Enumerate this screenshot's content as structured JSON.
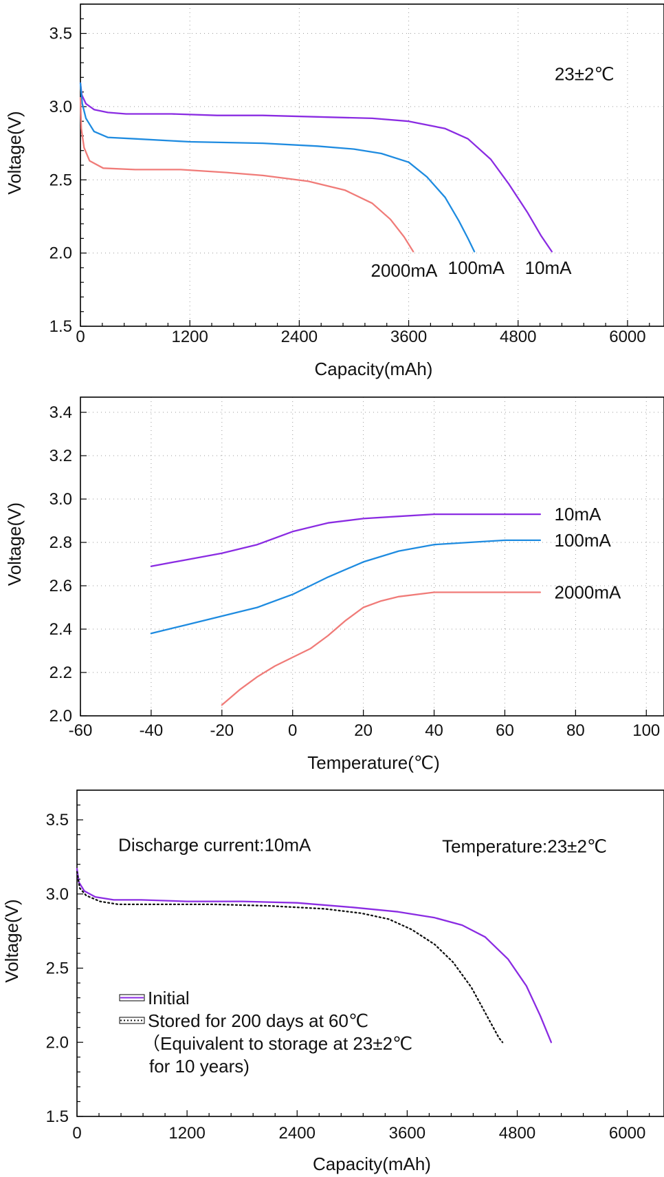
{
  "colors": {
    "ma10": "#8a2be2",
    "ma100": "#1e8be0",
    "ma2000": "#f07b78",
    "stored": "#111111"
  },
  "chart_data": [
    {
      "type": "line",
      "xlabel": "Capacity(mAh)",
      "ylabel": "Voltage(V)",
      "xlim": [
        0,
        6400
      ],
      "ylim": [
        1.5,
        3.7
      ],
      "xticks": [
        "0",
        "1200",
        "2400",
        "3600",
        "4800",
        "6000"
      ],
      "yticks": [
        "1.5",
        "2.0",
        "2.5",
        "3.0",
        "3.5"
      ],
      "grid": true,
      "annotations": [
        {
          "text": "23±2℃",
          "x": 5200,
          "y": 3.18
        }
      ],
      "series": [
        {
          "name": "10mA",
          "color_key": "ma10",
          "points": [
            [
              0,
              3.16
            ],
            [
              15,
              3.08
            ],
            [
              60,
              3.02
            ],
            [
              150,
              2.98
            ],
            [
              300,
              2.96
            ],
            [
              500,
              2.95
            ],
            [
              1000,
              2.95
            ],
            [
              1500,
              2.94
            ],
            [
              2000,
              2.94
            ],
            [
              2600,
              2.93
            ],
            [
              3200,
              2.92
            ],
            [
              3600,
              2.9
            ],
            [
              4000,
              2.85
            ],
            [
              4250,
              2.78
            ],
            [
              4500,
              2.64
            ],
            [
              4700,
              2.47
            ],
            [
              4900,
              2.28
            ],
            [
              5050,
              2.12
            ],
            [
              5170,
              2.01
            ]
          ]
        },
        {
          "name": "100mA",
          "color_key": "ma100",
          "points": [
            [
              0,
              3.16
            ],
            [
              20,
              3.02
            ],
            [
              60,
              2.92
            ],
            [
              150,
              2.83
            ],
            [
              300,
              2.79
            ],
            [
              600,
              2.78
            ],
            [
              1200,
              2.76
            ],
            [
              2000,
              2.75
            ],
            [
              2600,
              2.73
            ],
            [
              3000,
              2.71
            ],
            [
              3300,
              2.68
            ],
            [
              3600,
              2.62
            ],
            [
              3800,
              2.52
            ],
            [
              4000,
              2.38
            ],
            [
              4150,
              2.22
            ],
            [
              4250,
              2.1
            ],
            [
              4320,
              2.01
            ]
          ]
        },
        {
          "name": "2000mA",
          "color_key": "ma2000",
          "points": [
            [
              0,
              3.06
            ],
            [
              10,
              2.85
            ],
            [
              40,
              2.72
            ],
            [
              100,
              2.63
            ],
            [
              250,
              2.58
            ],
            [
              600,
              2.57
            ],
            [
              1100,
              2.57
            ],
            [
              1600,
              2.55
            ],
            [
              2000,
              2.53
            ],
            [
              2500,
              2.49
            ],
            [
              2900,
              2.43
            ],
            [
              3200,
              2.34
            ],
            [
              3400,
              2.23
            ],
            [
              3550,
              2.11
            ],
            [
              3650,
              2.01
            ]
          ]
        }
      ],
      "series_labels": [
        {
          "text": "2000mA",
          "x": 3550,
          "y": 1.88
        },
        {
          "text": "100mA",
          "x": 4340,
          "y": 1.9
        },
        {
          "text": "10mA",
          "x": 5130,
          "y": 1.9
        }
      ]
    },
    {
      "type": "line",
      "xlabel": "Temperature(℃)",
      "ylabel": "Voltage(V)",
      "xlim": [
        -60,
        105
      ],
      "ylim": [
        2.0,
        3.47
      ],
      "xticks": [
        "-60",
        "-40",
        "-20",
        "0",
        "20",
        "40",
        "60",
        "80",
        "100"
      ],
      "yticks": [
        "2.0",
        "2.2",
        "2.4",
        "2.6",
        "2.8",
        "3.0",
        "3.2",
        "3.4"
      ],
      "grid": true,
      "series": [
        {
          "name": "10mA",
          "color_key": "ma10",
          "points": [
            [
              -40,
              2.69
            ],
            [
              -30,
              2.72
            ],
            [
              -20,
              2.75
            ],
            [
              -10,
              2.79
            ],
            [
              0,
              2.85
            ],
            [
              10,
              2.89
            ],
            [
              20,
              2.91
            ],
            [
              30,
              2.92
            ],
            [
              40,
              2.93
            ],
            [
              50,
              2.93
            ],
            [
              60,
              2.93
            ],
            [
              70,
              2.93
            ]
          ]
        },
        {
          "name": "100mA",
          "color_key": "ma100",
          "points": [
            [
              -40,
              2.38
            ],
            [
              -30,
              2.42
            ],
            [
              -20,
              2.46
            ],
            [
              -10,
              2.5
            ],
            [
              0,
              2.56
            ],
            [
              10,
              2.64
            ],
            [
              20,
              2.71
            ],
            [
              30,
              2.76
            ],
            [
              40,
              2.79
            ],
            [
              50,
              2.8
            ],
            [
              60,
              2.81
            ],
            [
              70,
              2.81
            ]
          ]
        },
        {
          "name": "2000mA",
          "color_key": "ma2000",
          "points": [
            [
              -20,
              2.05
            ],
            [
              -15,
              2.12
            ],
            [
              -10,
              2.18
            ],
            [
              -5,
              2.23
            ],
            [
              0,
              2.27
            ],
            [
              5,
              2.31
            ],
            [
              10,
              2.37
            ],
            [
              15,
              2.44
            ],
            [
              20,
              2.5
            ],
            [
              25,
              2.53
            ],
            [
              30,
              2.55
            ],
            [
              40,
              2.57
            ],
            [
              50,
              2.57
            ],
            [
              60,
              2.57
            ],
            [
              70,
              2.57
            ]
          ]
        }
      ],
      "series_labels": [
        {
          "text": "10mA",
          "x": 74,
          "y": 2.93
        },
        {
          "text": "100mA",
          "x": 74,
          "y": 2.81
        },
        {
          "text": "2000mA",
          "x": 74,
          "y": 2.57
        }
      ]
    },
    {
      "type": "line",
      "xlabel": "Capacity(mAh)",
      "ylabel": "Voltage(V)",
      "xlim": [
        0,
        6400
      ],
      "ylim": [
        1.5,
        3.7
      ],
      "xticks": [
        "0",
        "1200",
        "2400",
        "3600",
        "4800",
        "6000"
      ],
      "yticks": [
        "1.5",
        "2.0",
        "2.5",
        "3.0",
        "3.5"
      ],
      "grid": false,
      "annotations": [
        {
          "text": "Discharge current:10mA",
          "x": 450,
          "y": 3.29
        },
        {
          "text": "Temperature:23±2℃",
          "x": 3980,
          "y": 3.28
        }
      ],
      "legend": {
        "entries": [
          {
            "name": "Initial",
            "color_key": "ma10",
            "style": "solid"
          },
          {
            "name": "Stored for 200 days at 60℃",
            "color_key": "stored",
            "style": "dotted"
          }
        ],
        "note_lines": [
          "（Equivalent to storage at 23±2℃",
          "for 10 years)"
        ]
      },
      "series": [
        {
          "name": "Initial",
          "color_key": "ma10",
          "style": "solid",
          "points": [
            [
              0,
              3.17
            ],
            [
              20,
              3.08
            ],
            [
              80,
              3.02
            ],
            [
              200,
              2.98
            ],
            [
              400,
              2.96
            ],
            [
              700,
              2.96
            ],
            [
              1200,
              2.95
            ],
            [
              1800,
              2.95
            ],
            [
              2400,
              2.94
            ],
            [
              3000,
              2.91
            ],
            [
              3500,
              2.88
            ],
            [
              3900,
              2.84
            ],
            [
              4200,
              2.79
            ],
            [
              4450,
              2.71
            ],
            [
              4700,
              2.56
            ],
            [
              4900,
              2.38
            ],
            [
              5050,
              2.18
            ],
            [
              5170,
              2.0
            ]
          ]
        },
        {
          "name": "Stored for 200 days at 60℃",
          "color_key": "stored",
          "style": "dotted",
          "points": [
            [
              0,
              3.15
            ],
            [
              30,
              3.04
            ],
            [
              100,
              2.99
            ],
            [
              250,
              2.95
            ],
            [
              450,
              2.93
            ],
            [
              900,
              2.93
            ],
            [
              1500,
              2.93
            ],
            [
              2100,
              2.92
            ],
            [
              2700,
              2.9
            ],
            [
              3100,
              2.87
            ],
            [
              3400,
              2.83
            ],
            [
              3650,
              2.76
            ],
            [
              3900,
              2.66
            ],
            [
              4100,
              2.54
            ],
            [
              4300,
              2.37
            ],
            [
              4450,
              2.2
            ],
            [
              4600,
              2.03
            ],
            [
              4640,
              2.0
            ]
          ]
        }
      ]
    }
  ]
}
